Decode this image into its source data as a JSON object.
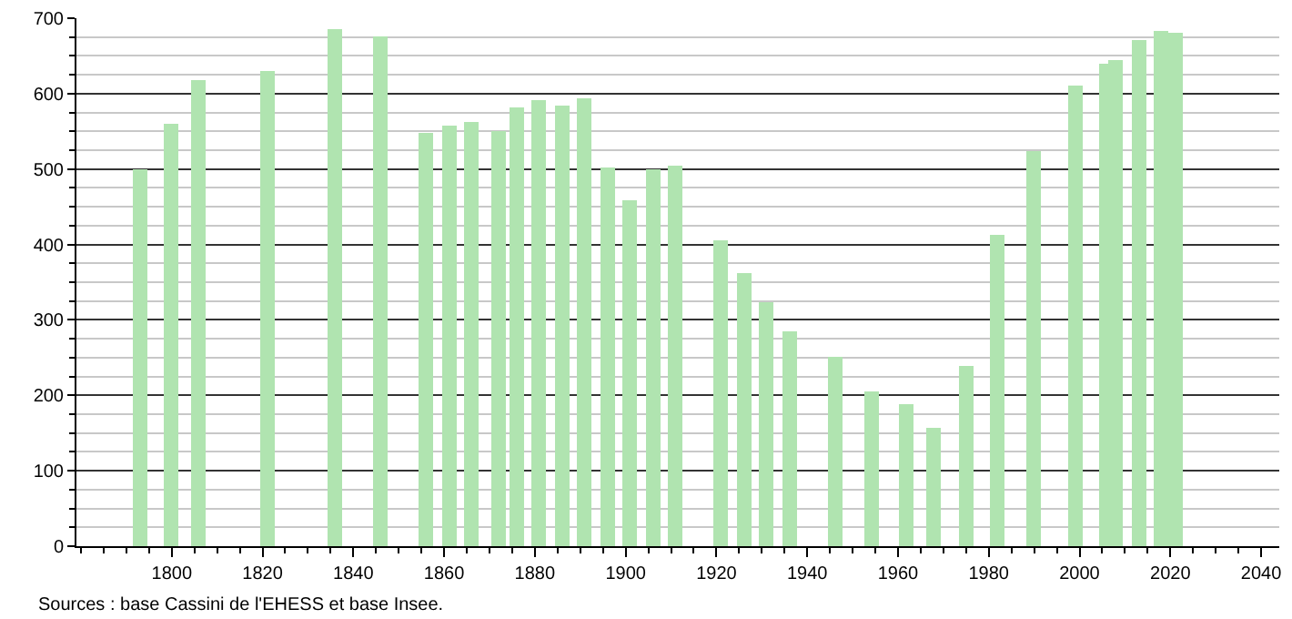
{
  "chart_data": {
    "type": "bar",
    "x": [
      1793,
      1800,
      1806,
      1821,
      1836,
      1846,
      1856,
      1861,
      1866,
      1872,
      1876,
      1881,
      1886,
      1891,
      1896,
      1901,
      1906,
      1911,
      1921,
      1926,
      1931,
      1936,
      1946,
      1954,
      1962,
      1968,
      1975,
      1982,
      1990,
      1999,
      2006,
      2008,
      2013,
      2018,
      2021
    ],
    "values": [
      500,
      560,
      618,
      630,
      685,
      676,
      548,
      558,
      562,
      550,
      582,
      591,
      584,
      594,
      502,
      459,
      500,
      504,
      405,
      362,
      323,
      285,
      251,
      205,
      188,
      157,
      239,
      413,
      523,
      611,
      640,
      645,
      671,
      682,
      680
    ],
    "color": "#b0e4b0",
    "xlim": [
      1779,
      2044
    ],
    "xticks": [
      1800,
      1820,
      1840,
      1860,
      1880,
      1900,
      1920,
      1940,
      1960,
      1980,
      2000,
      2020,
      2040
    ],
    "ylim": [
      0,
      700
    ],
    "yticks": [
      0,
      100,
      200,
      300,
      400,
      500,
      600,
      700
    ],
    "grid": "y",
    "annotations": [
      "Sources : base Cassini de l'EHESS et base Insee."
    ]
  }
}
